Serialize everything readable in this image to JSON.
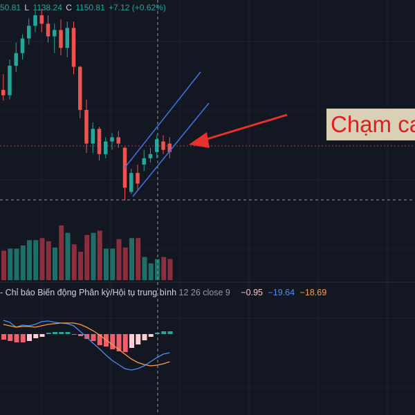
{
  "ohlc": {
    "open_tail": "50.81",
    "low_key": "L",
    "low_value": "1138.24",
    "close_key": "C",
    "close_value": "1150.81",
    "change": "+7.12 (+0.62%)"
  },
  "indicator": {
    "title": "- Chỉ báo Biến động Phân kỳ/Hội tụ trung bình",
    "params": "12 26 close 9",
    "histogram_value": "−0.95",
    "macd_value": "−19.64",
    "signal_value": "−18.69"
  },
  "annotation": {
    "callout_text": "Chạm ca"
  },
  "colors": {
    "background": "#131722",
    "up": "#26a69a",
    "down": "#ef5350",
    "volume_up": "#1f6f68",
    "volume_down": "#8a2f3c",
    "trend_channel": "#3f6fe0",
    "arrow": "#e8302c",
    "macd_line": "#4a8ef2",
    "signal_line": "#ff9e41",
    "callout_bg": "#d9d0b5"
  },
  "chart_data": {
    "type": "candlestick",
    "candles": [
      {
        "o": 1095,
        "h": 1110,
        "l": 1085,
        "c": 1090
      },
      {
        "o": 1090,
        "h": 1124,
        "l": 1086,
        "c": 1118
      },
      {
        "o": 1118,
        "h": 1140,
        "l": 1112,
        "c": 1130
      },
      {
        "o": 1130,
        "h": 1148,
        "l": 1124,
        "c": 1144
      },
      {
        "o": 1144,
        "h": 1163,
        "l": 1138,
        "c": 1156
      },
      {
        "o": 1156,
        "h": 1170,
        "l": 1150,
        "c": 1166
      },
      {
        "o": 1166,
        "h": 1172,
        "l": 1150,
        "c": 1158
      },
      {
        "o": 1158,
        "h": 1166,
        "l": 1140,
        "c": 1146
      },
      {
        "o": 1146,
        "h": 1158,
        "l": 1130,
        "c": 1152
      },
      {
        "o": 1152,
        "h": 1162,
        "l": 1128,
        "c": 1135
      },
      {
        "o": 1135,
        "h": 1160,
        "l": 1126,
        "c": 1154
      },
      {
        "o": 1154,
        "h": 1160,
        "l": 1110,
        "c": 1117
      },
      {
        "o": 1117,
        "h": 1118,
        "l": 1068,
        "c": 1076
      },
      {
        "o": 1076,
        "h": 1086,
        "l": 1035,
        "c": 1044
      },
      {
        "o": 1044,
        "h": 1064,
        "l": 1035,
        "c": 1058
      },
      {
        "o": 1058,
        "h": 1060,
        "l": 1028,
        "c": 1034
      },
      {
        "o": 1034,
        "h": 1050,
        "l": 1030,
        "c": 1046
      },
      {
        "o": 1046,
        "h": 1054,
        "l": 1038,
        "c": 1050
      },
      {
        "o": 1050,
        "h": 1056,
        "l": 1040,
        "c": 1044
      },
      {
        "o": 1040,
        "h": 1041,
        "l": 990,
        "c": 1002
      },
      {
        "o": 998,
        "h": 1020,
        "l": 996,
        "c": 1016
      },
      {
        "o": 1016,
        "h": 1024,
        "l": 1000,
        "c": 1006
      },
      {
        "o": 1024,
        "h": 1038,
        "l": 1018,
        "c": 1030
      },
      {
        "o": 1030,
        "h": 1040,
        "l": 1026,
        "c": 1034
      },
      {
        "o": 1036,
        "h": 1052,
        "l": 1030,
        "c": 1048
      },
      {
        "o": 1046,
        "h": 1052,
        "l": 1034,
        "c": 1038
      },
      {
        "o": 1044,
        "h": 1050,
        "l": 1030,
        "c": 1036
      }
    ],
    "volume": [
      28,
      30,
      30,
      33,
      38,
      38,
      40,
      37,
      31,
      52,
      45,
      34,
      27,
      43,
      45,
      47,
      30,
      30,
      39,
      31,
      40,
      40,
      22,
      16,
      20,
      22,
      20
    ],
    "macd": {
      "macd": [
        20,
        17,
        10,
        13,
        12,
        14,
        18,
        19,
        17,
        16,
        15,
        12,
        4,
        -4,
        -13,
        -21,
        -30,
        -38,
        -44,
        -50,
        -52,
        -50,
        -46,
        -40,
        -34,
        -29,
        -27
      ],
      "signal": [
        14,
        12,
        10,
        11,
        11,
        10,
        12,
        14,
        15,
        16,
        16,
        16,
        14,
        10,
        5,
        -1,
        -8,
        -15,
        -22,
        -29,
        -36,
        -41,
        -44,
        -46,
        -45,
        -43,
        -40
      ],
      "histogram": [
        -8,
        -10,
        -12,
        -12,
        -10,
        -6,
        -4,
        2,
        3,
        3,
        3,
        0,
        -3,
        -7,
        -10,
        -16,
        -18,
        -22,
        -25,
        -26,
        -20,
        -15,
        -9,
        -4,
        2,
        4,
        4
      ]
    }
  }
}
